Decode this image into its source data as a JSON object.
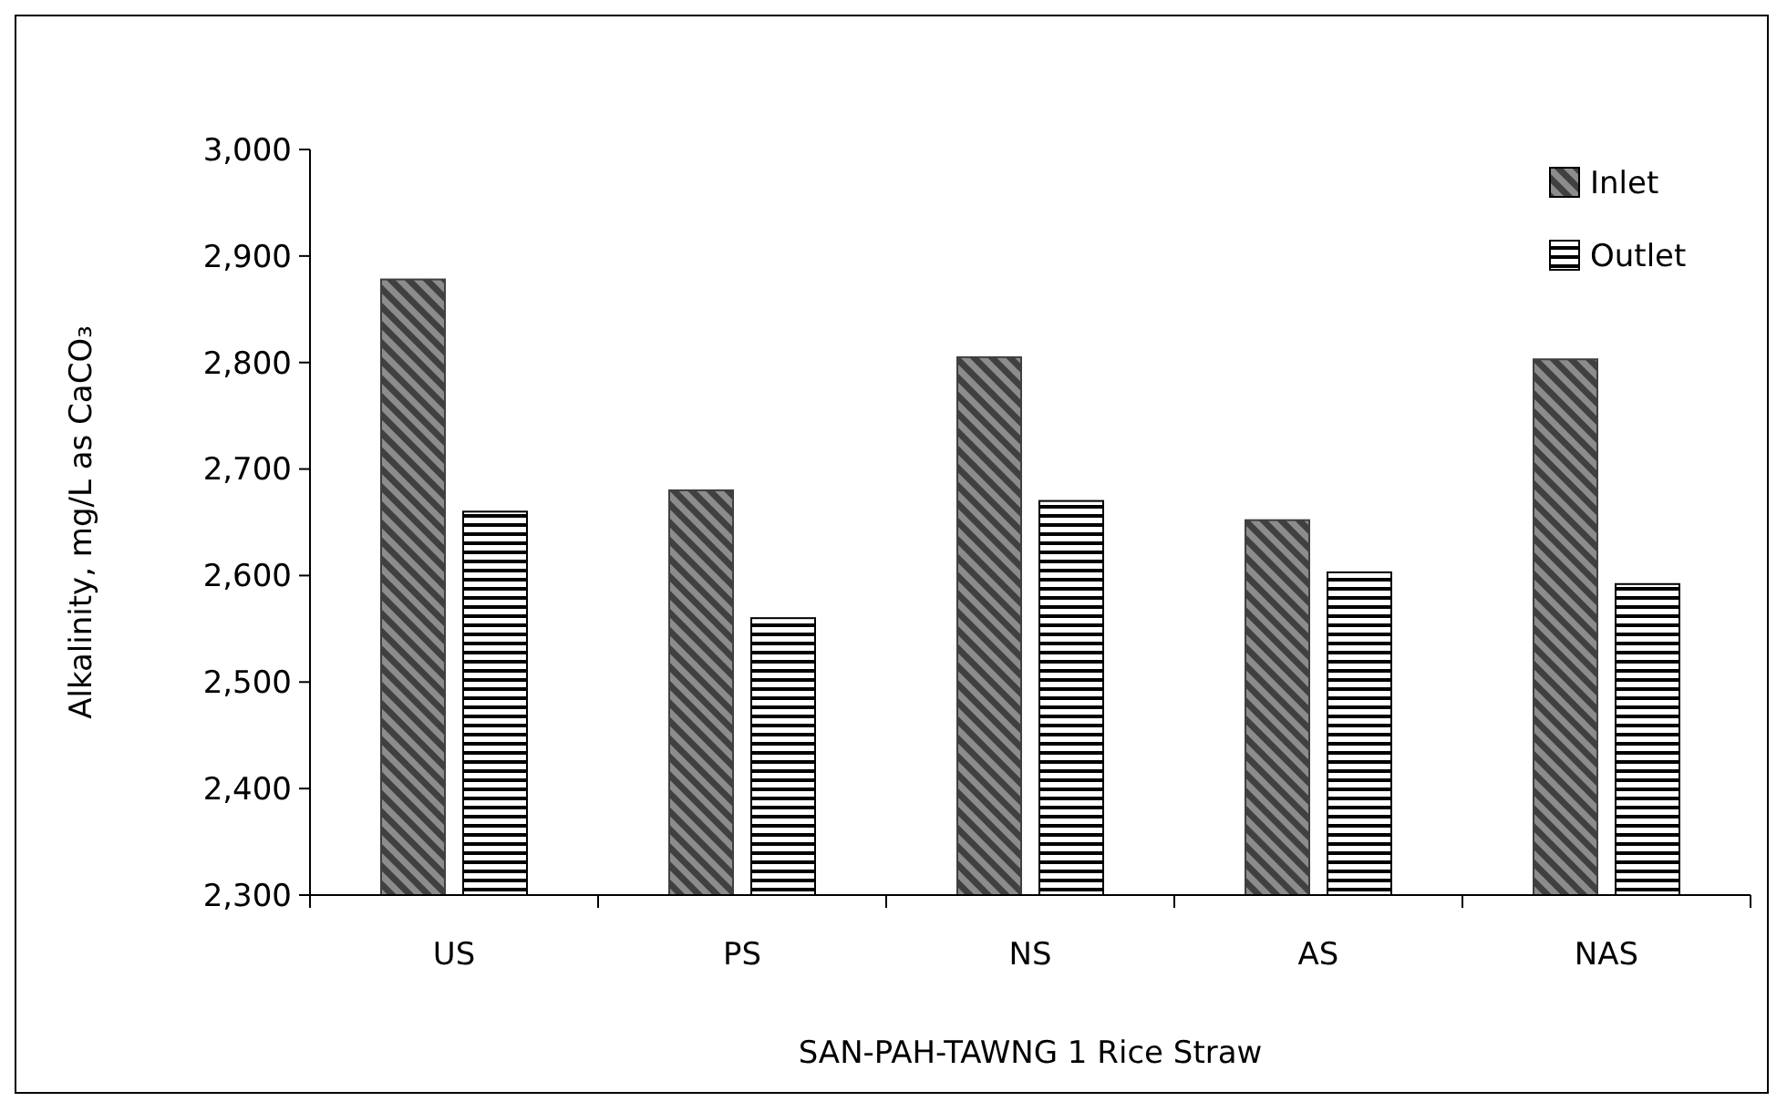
{
  "chart_data": {
    "type": "bar",
    "xlabel": "SAN-PAH-TAWNG 1 Rice Straw",
    "ylabel": "Alkalinity, mg/L as CaCO₃",
    "categories": [
      "US",
      "PS",
      "NS",
      "AS",
      "NAS"
    ],
    "series": [
      {
        "name": "Inlet",
        "color": "#404040",
        "values": [
          2878,
          2680,
          2805,
          2652,
          2803
        ]
      },
      {
        "name": "Outlet",
        "color": "#000000",
        "values": [
          2660,
          2560,
          2670,
          2603,
          2592
        ]
      }
    ],
    "ylim": [
      2300,
      3000
    ],
    "yticks": [
      {
        "value": 2300,
        "label": "2,300"
      },
      {
        "value": 2400,
        "label": "2,400"
      },
      {
        "value": 2500,
        "label": "2,500"
      },
      {
        "value": 2600,
        "label": "2,600"
      },
      {
        "value": 2700,
        "label": "2,700"
      },
      {
        "value": 2800,
        "label": "2,800"
      },
      {
        "value": 2900,
        "label": "2,900"
      },
      {
        "value": 3000,
        "label": "3,000"
      }
    ],
    "legend": "top right"
  }
}
